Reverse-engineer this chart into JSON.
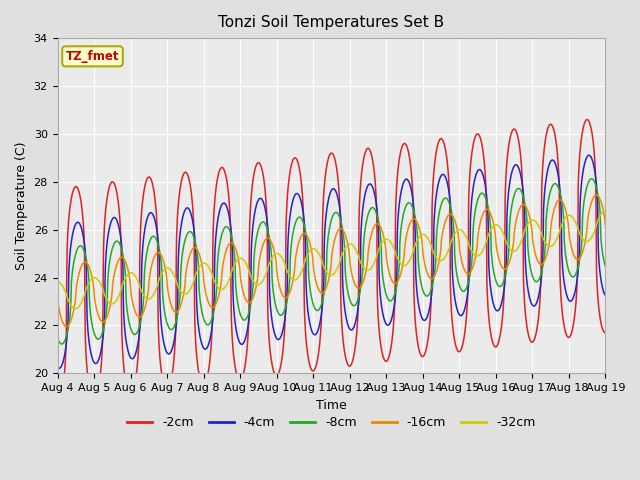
{
  "title": "Tonzi Soil Temperatures Set B",
  "xlabel": "Time",
  "ylabel": "Soil Temperature (C)",
  "ylim": [
    20,
    34
  ],
  "x_tick_labels": [
    "Aug 4",
    "Aug 5",
    "Aug 6",
    "Aug 7",
    "Aug 8",
    "Aug 9",
    "Aug 10",
    "Aug 11",
    "Aug 12",
    "Aug 13",
    "Aug 14",
    "Aug 15",
    "Aug 16",
    "Aug 17",
    "Aug 18",
    "Aug 19"
  ],
  "annotation_text": "TZ_fmet",
  "annotation_color": "#cc0000",
  "annotation_bg": "#ffffcc",
  "annotation_border": "#aaaa00",
  "series_colors": [
    "#dd2222",
    "#2222cc",
    "#22aa22",
    "#ee8800",
    "#cccc00"
  ],
  "series_labels": [
    "-2cm",
    "-4cm",
    "-8cm",
    "-16cm",
    "-32cm"
  ],
  "bg_color": "#e0e0e0",
  "plot_bg": "#ebebeb",
  "days": 15,
  "base_temp": 23.2,
  "trend": 0.2,
  "amplitudes": [
    4.5,
    3.0,
    2.0,
    1.3,
    0.6
  ],
  "phase_shifts_days": [
    0.0,
    0.05,
    0.12,
    0.25,
    0.5
  ],
  "peak_sharpness": [
    3.0,
    2.5,
    2.0,
    1.5,
    1.2
  ]
}
